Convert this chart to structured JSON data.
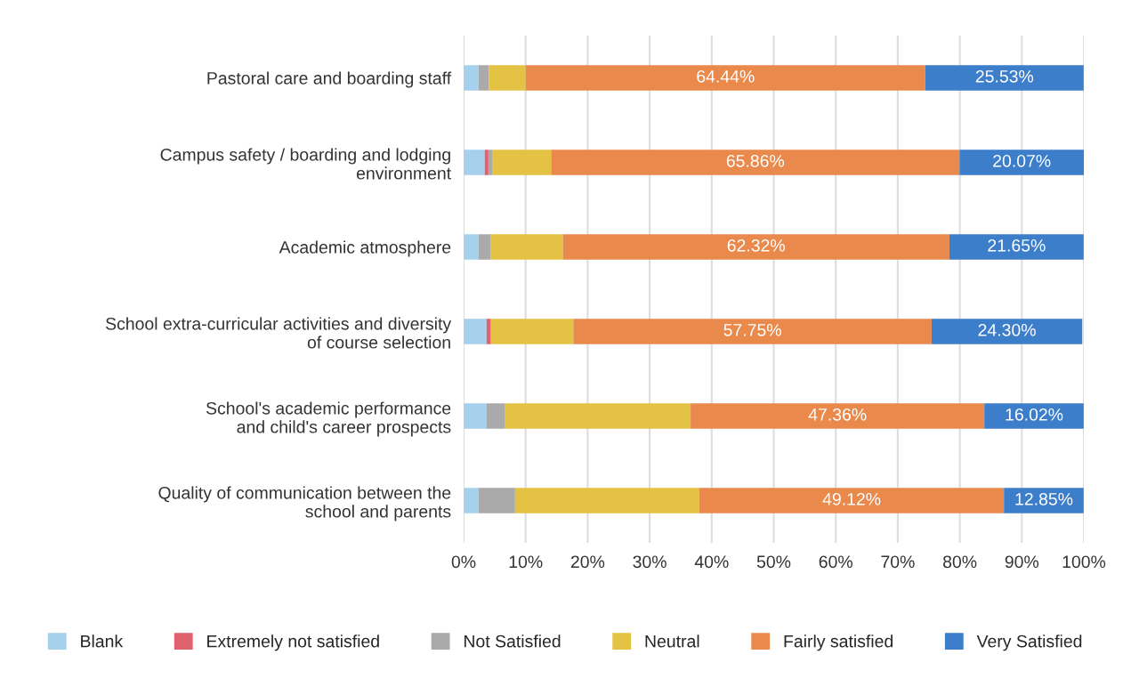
{
  "chart_data": {
    "type": "bar",
    "orientation": "horizontal",
    "stacked": true,
    "categories": [
      "Pastoral care and boarding staff",
      "Campus safety / boarding and lodging\nenvironment",
      "Academic atmosphere",
      "School extra-curricular activities and diversity\nof course selection",
      "School's academic performance\nand child's career prospects",
      "Quality of communication between the\nschool and parents"
    ],
    "series": [
      {
        "name": "Blank",
        "color": "#a6d0ec",
        "values": [
          2.4,
          3.4,
          2.4,
          3.7,
          3.7,
          2.4
        ]
      },
      {
        "name": "Extremely not satisfied",
        "color": "#e0626f",
        "values": [
          0,
          0.6,
          0,
          0.7,
          0,
          0
        ]
      },
      {
        "name": "Not Satisfied",
        "color": "#aaaaaa",
        "values": [
          1.7,
          0.7,
          2.0,
          null,
          2.9,
          5.9
        ]
      },
      {
        "name": "Neutral",
        "color": "#e4c244",
        "values": [
          5.9,
          9.4,
          11.6,
          13.3,
          30.0,
          29.7
        ]
      },
      {
        "name": "Fairly satisfied",
        "color": "#e98a4c",
        "values": [
          64.44,
          65.86,
          62.32,
          57.75,
          47.36,
          49.12
        ],
        "value_labels": [
          "64.44%",
          "65.86%",
          "62.32%",
          "57.75%",
          "47.36%",
          "49.12%"
        ]
      },
      {
        "name": "Very Satisfied",
        "color": "#3d7ecb",
        "values": [
          25.53,
          20.07,
          21.65,
          24.3,
          16.02,
          12.85
        ],
        "value_labels": [
          "25.53%",
          "20.07%",
          "21.65%",
          "24.30%",
          "16.02%",
          "12.85%"
        ]
      }
    ],
    "xlim": [
      0,
      100
    ],
    "xticks": [
      {
        "value": 0,
        "label": "0%"
      },
      {
        "value": 10,
        "label": "10%"
      },
      {
        "value": 20,
        "label": "20%"
      },
      {
        "value": 30,
        "label": "30%"
      },
      {
        "value": 40,
        "label": "40%"
      },
      {
        "value": 50,
        "label": "50%"
      },
      {
        "value": 60,
        "label": "60%"
      },
      {
        "value": 70,
        "label": "70%"
      },
      {
        "value": 80,
        "label": "80%"
      },
      {
        "value": 90,
        "label": "90%"
      },
      {
        "value": 100,
        "label": "100%"
      }
    ],
    "grid": "x",
    "legend": "bottom"
  }
}
